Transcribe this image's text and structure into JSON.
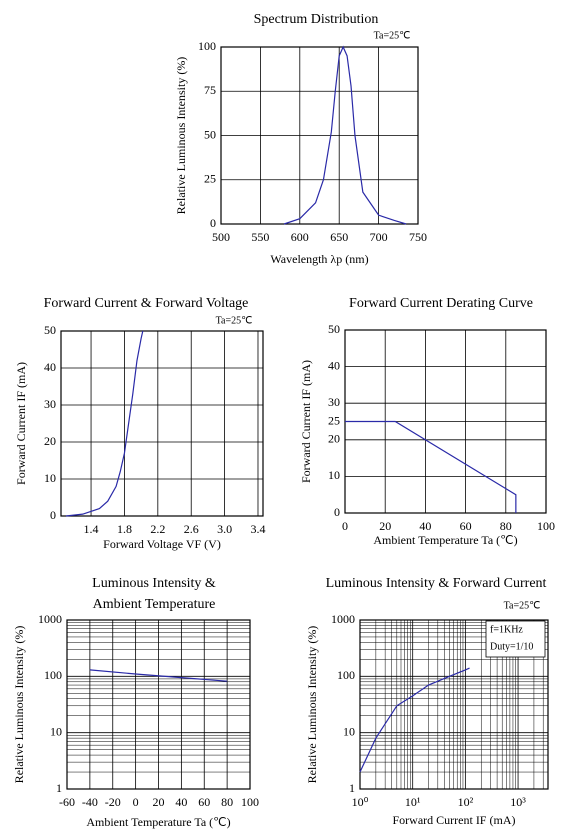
{
  "chart_data": [
    {
      "type": "line",
      "title": "Spectrum Distribution",
      "annotations": [
        "Ta=25℃"
      ],
      "x_label": "Wavelength λp (nm)",
      "y_label": "Relative Luminous Intensity (%)",
      "x": [
        580,
        600,
        620,
        630,
        640,
        645,
        650,
        655,
        660,
        665,
        670,
        680,
        700,
        720,
        735
      ],
      "values": [
        0,
        3,
        12,
        25,
        52,
        75,
        95,
        100,
        95,
        78,
        50,
        18,
        5,
        2,
        0
      ],
      "color": "#2a2aa8",
      "xlim": [
        500,
        750
      ],
      "xticks": [
        500,
        550,
        600,
        650,
        700,
        750
      ],
      "ylim": [
        0,
        100
      ],
      "yticks": [
        0,
        25,
        50,
        75,
        100
      ],
      "grid": true
    },
    {
      "type": "line",
      "title": "Forward Current & Forward Voltage",
      "annotations": [
        "Ta=25℃"
      ],
      "x_label": "Forward Voltage VF (V)",
      "y_label": "Forward Current IF (mA)",
      "x": [
        1.1,
        1.3,
        1.5,
        1.6,
        1.7,
        1.75,
        1.8,
        1.85,
        1.9,
        1.95,
        2.0,
        2.02
      ],
      "values": [
        0,
        0.5,
        2,
        4,
        8,
        12,
        17,
        25,
        33,
        42,
        48,
        50
      ],
      "color": "#2a2aa8",
      "xlim": [
        1.04,
        3.46
      ],
      "xticks": [
        1.4,
        1.8,
        2.2,
        2.6,
        {
          "value": 3,
          "label": "3.0"
        },
        3.4
      ],
      "ylim": [
        0,
        50
      ],
      "yticks": [
        0,
        10,
        20,
        30,
        40,
        50
      ],
      "grid": true
    },
    {
      "type": "line",
      "title": "Forward Current Derating Curve",
      "annotations": [],
      "x_label": "Ambient Temperature Ta (℃)",
      "y_label": "Forward Current IF (mA)",
      "x": [
        0,
        25,
        85,
        85
      ],
      "values": [
        25,
        25,
        5,
        0
      ],
      "color": "#2a2aa8",
      "xlim": [
        0,
        100
      ],
      "xticks": [
        0,
        20,
        40,
        60,
        80,
        100
      ],
      "ylim": [
        0,
        50
      ],
      "yticks": [
        0,
        10,
        20,
        25,
        30,
        40,
        50
      ],
      "grid": true
    },
    {
      "type": "line",
      "title": [
        "Luminous Intensity &",
        "Ambient Temperature"
      ],
      "annotations": [],
      "x_label": "Ambient Temperature Ta (℃)",
      "y_label": "Relative Luminous Intensity (%)",
      "x": [
        -40,
        0,
        40,
        80
      ],
      "values": [
        130,
        110,
        95,
        82
      ],
      "color": "#2a2aa8",
      "xlim": [
        -60,
        100
      ],
      "xticks": [
        -60,
        -40,
        -20,
        0,
        20,
        40,
        60,
        80,
        100
      ],
      "ylim": [
        1,
        1000
      ],
      "yticks": [
        1,
        10,
        100,
        1000
      ],
      "ylog": true,
      "grid": true
    },
    {
      "type": "line",
      "title": "Luminous Intensity & Forward Current",
      "annotations": [
        "Ta=25℃",
        "f=1KHz",
        "Duty=1/10"
      ],
      "x_label": "Forward Current IF (mA)",
      "y_label": "Relative Luminous Intensity (%)",
      "x": [
        1,
        2,
        5,
        10,
        20,
        50,
        100,
        120
      ],
      "values": [
        2,
        8,
        30,
        45,
        70,
        100,
        130,
        140
      ],
      "color": "#2a2aa8",
      "xlim": [
        1,
        3700
      ],
      "xlog": true,
      "xticks": [
        {
          "value": 1,
          "label": "10⁰"
        },
        {
          "value": 10,
          "label": "10¹"
        },
        {
          "value": 100,
          "label": "10²"
        },
        {
          "value": 1000,
          "label": "10³"
        }
      ],
      "ylim": [
        1,
        1000
      ],
      "yticks": [
        1,
        10,
        100,
        1000
      ],
      "ylog": true,
      "grid": true
    }
  ]
}
